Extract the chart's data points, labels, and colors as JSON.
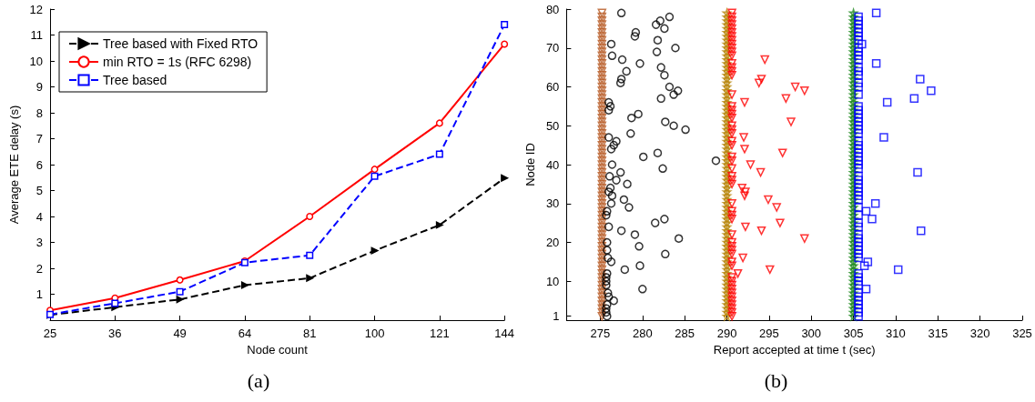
{
  "chart_data": [
    {
      "type": "line",
      "title": "(a)",
      "xlabel": "Node count",
      "ylabel": "Average ETE delay (s)",
      "categories": [
        "25",
        "36",
        "49",
        "64",
        "81",
        "100",
        "121",
        "144"
      ],
      "ylim": [
        0,
        12
      ],
      "yticks": [
        1,
        2,
        3,
        4,
        5,
        6,
        7,
        8,
        9,
        10,
        11,
        12
      ],
      "grid": false,
      "legend": "top left",
      "series": [
        {
          "name": "Tree based with Fixed RTO",
          "color": "#000000",
          "marker": "triangle",
          "line_style": "dashed",
          "values": [
            0.2,
            0.5,
            0.8,
            1.35,
            1.62,
            2.68,
            3.67,
            5.48
          ]
        },
        {
          "name": "min RTO = 1s (RFC 6298)",
          "color": "#ff0000",
          "marker": "circle",
          "line_style": "solid",
          "values": [
            0.38,
            0.85,
            1.55,
            2.28,
            4.0,
            5.82,
            7.6,
            10.65
          ]
        },
        {
          "name": "Tree based",
          "color": "#0000ff",
          "marker": "square",
          "line_style": "dashed",
          "values": [
            0.22,
            0.65,
            1.1,
            2.22,
            2.5,
            5.55,
            6.4,
            11.4
          ]
        }
      ]
    },
    {
      "type": "scatter",
      "title": "(b)",
      "xlabel": "Report accepted at time t (sec)",
      "ylabel": "Node ID",
      "xlim": [
        271,
        325
      ],
      "xticks": [
        275,
        280,
        285,
        290,
        295,
        300,
        305,
        310,
        315,
        320,
        325
      ],
      "ylim": [
        0,
        80
      ],
      "yticks": [
        1,
        10,
        20,
        30,
        40,
        50,
        60,
        70,
        80
      ],
      "grid": false,
      "legend": false,
      "series": [
        {
          "color": "#b5561f",
          "marker": "triangle",
          "x": [
            275.2,
            275.2,
            275.2,
            275.2,
            275.2,
            275.2,
            275.2,
            275.2,
            275.2,
            275.2,
            275.2,
            275.2,
            275.2,
            275.2,
            275.2,
            275.2,
            275.2,
            275.2,
            275.2,
            275.2,
            275.2,
            275.2,
            275.2,
            275.2,
            275.2,
            275.2,
            275.2,
            275.2,
            275.2,
            275.2,
            275.2,
            275.2,
            275.2,
            275.2,
            275.2,
            275.2,
            275.2,
            275.2,
            275.2,
            275.2,
            275.2,
            275.2,
            275.2,
            275.2,
            275.2,
            275.2,
            275.2,
            275.2,
            275.2,
            275.2,
            275.2,
            275.2,
            275.2,
            275.2,
            275.2,
            275.2,
            275.2,
            275.2,
            275.2,
            275.2,
            275.2,
            275.2,
            275.2,
            275.2,
            275.2,
            275.2,
            275.2,
            275.2,
            275.2,
            275.2,
            275.2,
            275.2,
            275.2,
            275.2,
            275.2,
            275.2,
            275.2,
            275.2,
            275.2
          ],
          "values": [
            79,
            78,
            77,
            76,
            75,
            74,
            73,
            72,
            71,
            70,
            69,
            68,
            67,
            66,
            65,
            64,
            63,
            62,
            61,
            60,
            59,
            58,
            57,
            56,
            55,
            54,
            53,
            52,
            51,
            50,
            49,
            48,
            47,
            46,
            45,
            44,
            43,
            42,
            41,
            40,
            39,
            38,
            37,
            36,
            35,
            34,
            33,
            32,
            31,
            30,
            29,
            28,
            27,
            26,
            25,
            24,
            23,
            22,
            21,
            20,
            19,
            18,
            17,
            16,
            15,
            14,
            13,
            12,
            11,
            10,
            9,
            8,
            7,
            6,
            5,
            4,
            3,
            2,
            1
          ]
        },
        {
          "color": "#000000",
          "marker": "circle",
          "x": [
            277.5,
            283.2,
            282.1,
            281.6,
            282.6,
            279.2,
            279.1,
            281.8,
            276.3,
            283.9,
            281.7,
            276.4,
            277.6,
            279.7,
            282.2,
            278.1,
            282.6,
            277.5,
            277.4,
            283.2,
            284.2,
            283.7,
            282.2,
            276.0,
            276.2,
            276.0,
            279.5,
            278.7,
            282.7,
            283.7,
            285.1,
            278.6,
            276.0,
            276.9,
            276.6,
            276.3,
            281.8,
            280.1,
            288.7,
            276.4,
            282.4,
            277.4,
            276.1,
            276.9,
            278.2,
            276.2,
            276.0,
            276.4,
            277.8,
            276.3,
            278.4,
            275.8,
            275.7,
            282.6,
            281.5,
            276.0,
            277.5,
            279.1,
            284.3,
            275.8,
            279.6,
            275.8,
            282.7,
            275.9,
            276.3,
            279.7,
            277.9,
            275.8,
            275.7,
            275.7,
            275.7,
            280.0,
            275.9,
            276.0,
            276.6,
            275.8,
            275.7,
            275.7,
            275.8
          ],
          "values": [
            79,
            78,
            77,
            76,
            75,
            74,
            73,
            72,
            71,
            70,
            69,
            68,
            67,
            66,
            65,
            64,
            63,
            62,
            61,
            60,
            59,
            58,
            57,
            56,
            55,
            54,
            53,
            52,
            51,
            50,
            49,
            48,
            47,
            46,
            45,
            44,
            43,
            42,
            41,
            40,
            39,
            38,
            37,
            36,
            35,
            34,
            33,
            32,
            31,
            30,
            29,
            28,
            27,
            26,
            25,
            24,
            23,
            22,
            21,
            20,
            19,
            18,
            17,
            16,
            15,
            14,
            13,
            12,
            11,
            10,
            9,
            8,
            7,
            6,
            5,
            4,
            3,
            2,
            1
          ]
        },
        {
          "color": "#b8860b",
          "marker": "star",
          "x": [
            290.0,
            290.0,
            290.0,
            290.0,
            290.0,
            290.0,
            290.0,
            290.0,
            290.0,
            290.0,
            290.0,
            290.0,
            290.0,
            290.0,
            290.0,
            290.0,
            290.0,
            290.0,
            290.0,
            290.0,
            290.0,
            290.0,
            290.0,
            290.0,
            290.0,
            290.0,
            290.0,
            290.0,
            290.0,
            290.0,
            290.0,
            290.0,
            290.0,
            290.0,
            290.0,
            290.0,
            290.0,
            290.0,
            290.0,
            290.0,
            290.0,
            290.0,
            290.0,
            290.0,
            290.0,
            290.0,
            290.0,
            290.0,
            290.0,
            290.0,
            290.0,
            290.0,
            290.0,
            290.0,
            290.0,
            290.0,
            290.0,
            290.0,
            290.0,
            290.0,
            290.0,
            290.0,
            290.0,
            290.0,
            290.0,
            290.0,
            290.0,
            290.0,
            290.0,
            290.0,
            290.0,
            290.0,
            290.0,
            290.0,
            290.0,
            290.0,
            290.0,
            290.0,
            290.0
          ],
          "values": [
            79,
            78,
            77,
            76,
            75,
            74,
            73,
            72,
            71,
            70,
            69,
            68,
            67,
            66,
            65,
            64,
            63,
            62,
            61,
            60,
            59,
            58,
            57,
            56,
            55,
            54,
            53,
            52,
            51,
            50,
            49,
            48,
            47,
            46,
            45,
            44,
            43,
            42,
            41,
            40,
            39,
            38,
            37,
            36,
            35,
            34,
            33,
            32,
            31,
            30,
            29,
            28,
            27,
            26,
            25,
            24,
            23,
            22,
            21,
            20,
            19,
            18,
            17,
            16,
            15,
            14,
            13,
            12,
            11,
            10,
            9,
            8,
            7,
            6,
            5,
            4,
            3,
            2,
            1
          ]
        },
        {
          "color": "#ff0000",
          "marker": "triangle",
          "x": [
            290.6,
            290.6,
            290.6,
            290.6,
            290.6,
            290.6,
            290.6,
            290.6,
            290.6,
            290.6,
            290.6,
            290.6,
            294.5,
            290.6,
            290.6,
            290.6,
            290.6,
            294.1,
            293.8,
            298.1,
            299.2,
            290.6,
            297.0,
            292.1,
            290.6,
            290.6,
            290.6,
            290.6,
            297.6,
            290.6,
            290.6,
            290.6,
            292.0,
            290.6,
            290.6,
            292.1,
            296.6,
            290.6,
            290.6,
            292.8,
            290.6,
            294.0,
            290.6,
            290.6,
            290.6,
            291.8,
            292.2,
            292.1,
            294.9,
            290.6,
            295.9,
            290.6,
            290.6,
            290.6,
            296.3,
            292.2,
            294.1,
            290.6,
            299.2,
            290.6,
            290.6,
            290.6,
            290.6,
            291.9,
            290.6,
            290.6,
            295.1,
            291.3,
            290.6,
            290.6,
            290.6,
            290.6,
            290.6,
            290.6,
            290.6,
            290.6,
            290.6,
            290.6,
            290.6
          ],
          "values": [
            79,
            78,
            77,
            76,
            75,
            74,
            73,
            72,
            71,
            70,
            69,
            68,
            67,
            66,
            65,
            64,
            63,
            62,
            61,
            60,
            59,
            58,
            57,
            56,
            55,
            54,
            53,
            52,
            51,
            50,
            49,
            48,
            47,
            46,
            45,
            44,
            43,
            42,
            41,
            40,
            39,
            38,
            37,
            36,
            35,
            34,
            33,
            32,
            31,
            30,
            29,
            28,
            27,
            26,
            25,
            24,
            23,
            22,
            21,
            20,
            19,
            18,
            17,
            16,
            15,
            14,
            13,
            12,
            11,
            10,
            9,
            8,
            7,
            6,
            5,
            4,
            3,
            2,
            1
          ]
        },
        {
          "color": "#228b22",
          "marker": "star",
          "x": [
            305.0,
            305.0,
            305.0,
            305.0,
            305.0,
            305.0,
            305.0,
            305.0,
            305.0,
            305.0,
            305.0,
            305.0,
            305.0,
            305.0,
            305.0,
            305.0,
            305.0,
            305.0,
            305.0,
            305.0,
            305.0,
            305.0,
            305.0,
            305.0,
            305.0,
            305.0,
            305.0,
            305.0,
            305.0,
            305.0,
            305.0,
            305.0,
            305.0,
            305.0,
            305.0,
            305.0,
            305.0,
            305.0,
            305.0,
            305.0,
            305.0,
            305.0,
            305.0,
            305.0,
            305.0,
            305.0,
            305.0,
            305.0,
            305.0,
            305.0,
            305.0,
            305.0,
            305.0,
            305.0,
            305.0,
            305.0,
            305.0,
            305.0,
            305.0,
            305.0,
            305.0,
            305.0,
            305.0,
            305.0,
            305.0,
            305.0,
            305.0,
            305.0,
            305.0,
            305.0,
            305.0,
            305.0,
            305.0,
            305.0,
            305.0,
            305.0,
            305.0,
            305.0,
            305.0
          ],
          "values": [
            79,
            78,
            77,
            76,
            75,
            74,
            73,
            72,
            71,
            70,
            69,
            68,
            67,
            66,
            65,
            64,
            63,
            62,
            61,
            60,
            59,
            58,
            57,
            56,
            55,
            54,
            53,
            52,
            51,
            50,
            49,
            48,
            47,
            46,
            45,
            44,
            43,
            42,
            41,
            40,
            39,
            38,
            37,
            36,
            35,
            34,
            33,
            32,
            31,
            30,
            29,
            28,
            27,
            26,
            25,
            24,
            23,
            22,
            21,
            20,
            19,
            18,
            17,
            16,
            15,
            14,
            13,
            12,
            11,
            10,
            9,
            8,
            7,
            6,
            5,
            4,
            3,
            2,
            1
          ]
        },
        {
          "color": "#0000ff",
          "marker": "square",
          "x": [
            307.7,
            305.6,
            305.6,
            305.6,
            305.6,
            305.6,
            305.6,
            305.6,
            306.0,
            305.6,
            305.6,
            305.6,
            305.6,
            307.7,
            305.6,
            305.6,
            305.6,
            312.9,
            305.6,
            305.6,
            314.2,
            305.6,
            312.2,
            309.0,
            305.6,
            305.6,
            305.6,
            305.6,
            305.6,
            305.6,
            305.6,
            305.6,
            308.6,
            305.6,
            305.6,
            305.6,
            305.6,
            305.6,
            305.6,
            305.6,
            305.6,
            312.6,
            305.6,
            305.6,
            305.6,
            305.6,
            305.6,
            305.6,
            305.6,
            307.6,
            305.6,
            306.5,
            305.6,
            307.2,
            305.6,
            305.6,
            313.0,
            305.6,
            305.6,
            305.6,
            305.6,
            305.6,
            305.6,
            305.6,
            306.7,
            306.3,
            310.3,
            305.6,
            305.6,
            305.6,
            305.6,
            306.5,
            305.6,
            305.6,
            305.6,
            305.6,
            305.6,
            305.6,
            305.6
          ],
          "values": [
            79,
            78,
            77,
            76,
            75,
            74,
            73,
            72,
            71,
            70,
            69,
            68,
            67,
            66,
            65,
            64,
            63,
            62,
            61,
            60,
            59,
            58,
            57,
            56,
            55,
            54,
            53,
            52,
            51,
            50,
            49,
            48,
            47,
            46,
            45,
            44,
            43,
            42,
            41,
            40,
            39,
            38,
            37,
            36,
            35,
            34,
            33,
            32,
            31,
            30,
            29,
            28,
            27,
            26,
            25,
            24,
            23,
            22,
            21,
            20,
            19,
            18,
            17,
            16,
            15,
            14,
            13,
            12,
            11,
            10,
            9,
            8,
            7,
            6,
            5,
            4,
            3,
            2,
            1
          ]
        }
      ]
    }
  ]
}
